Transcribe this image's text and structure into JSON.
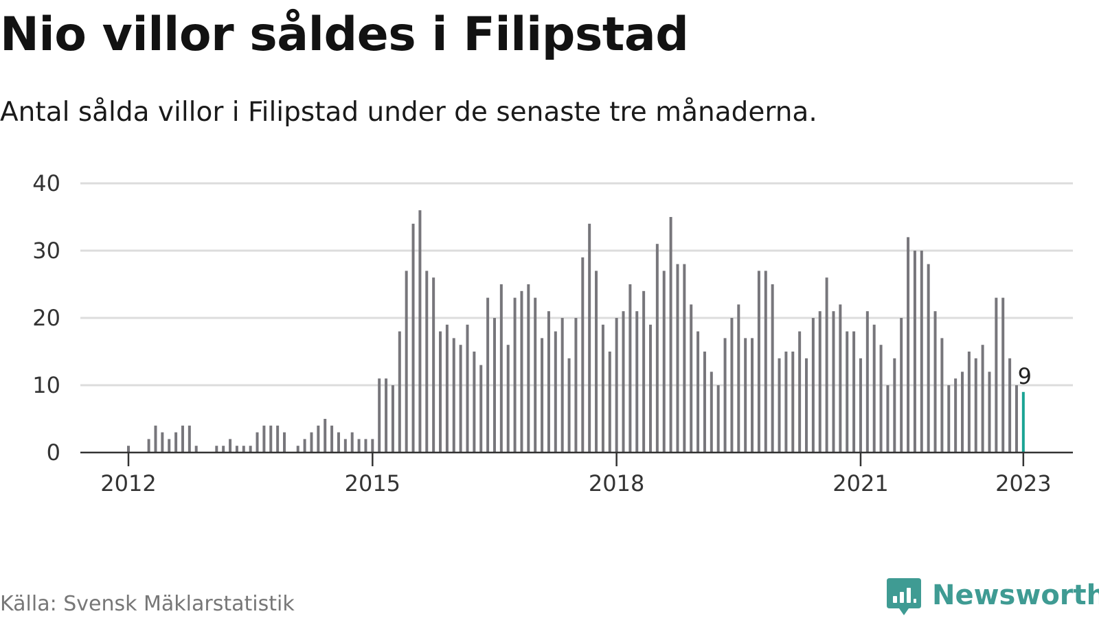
{
  "header": {
    "title": "Nio villor såldes i Filipstad",
    "subtitle": "Antal sålda villor i Filipstad under de senaste tre månaderna."
  },
  "footer": {
    "source": "Källa: Svensk Mäklarstatistik",
    "brand": "Newsworthy"
  },
  "colors": {
    "bar": "#77767b",
    "highlight": "#1aa394",
    "grid": "#dcdcdc",
    "axis": "#333333",
    "brand": "#3f9b93"
  },
  "icons": {
    "logo": "newsworthy-bar-chart-icon"
  },
  "chart_data": {
    "type": "bar",
    "title": "Nio villor såldes i Filipstad",
    "subtitle": "Antal sålda villor i Filipstad under de senaste tre månaderna.",
    "xlabel": "",
    "ylabel": "",
    "ylim": [
      0,
      40
    ],
    "y_ticks": [
      0,
      10,
      20,
      30,
      40
    ],
    "x_ticks": [
      {
        "label": "2012",
        "index": 0
      },
      {
        "label": "2015",
        "index": 36
      },
      {
        "label": "2018",
        "index": 72
      },
      {
        "label": "2021",
        "index": 108
      },
      {
        "label": "2023",
        "index": 132
      }
    ],
    "grid": true,
    "period": "monthly, Jan 2012 – Jan 2023",
    "values": [
      1,
      0,
      0,
      2,
      4,
      3,
      2,
      3,
      4,
      4,
      1,
      0,
      0,
      1,
      1,
      2,
      1,
      1,
      1,
      3,
      4,
      4,
      4,
      3,
      0,
      1,
      2,
      3,
      4,
      5,
      4,
      3,
      2,
      3,
      2,
      2,
      2,
      11,
      11,
      10,
      18,
      27,
      34,
      36,
      27,
      26,
      18,
      19,
      17,
      16,
      19,
      15,
      13,
      23,
      20,
      25,
      16,
      23,
      24,
      25,
      23,
      17,
      21,
      18,
      20,
      14,
      20,
      29,
      34,
      27,
      19,
      15,
      20,
      21,
      25,
      21,
      24,
      19,
      31,
      27,
      35,
      28,
      28,
      22,
      18,
      15,
      12,
      10,
      17,
      20,
      22,
      17,
      17,
      27,
      27,
      25,
      14,
      15,
      15,
      18,
      14,
      20,
      21,
      26,
      21,
      22,
      18,
      18,
      14,
      21,
      19,
      16,
      10,
      14,
      20,
      32,
      30,
      30,
      28,
      21,
      17,
      10,
      11,
      12,
      15,
      14,
      16,
      12,
      23,
      23,
      14,
      10,
      9
    ],
    "highlight_index": 132,
    "highlight_label": "9"
  }
}
